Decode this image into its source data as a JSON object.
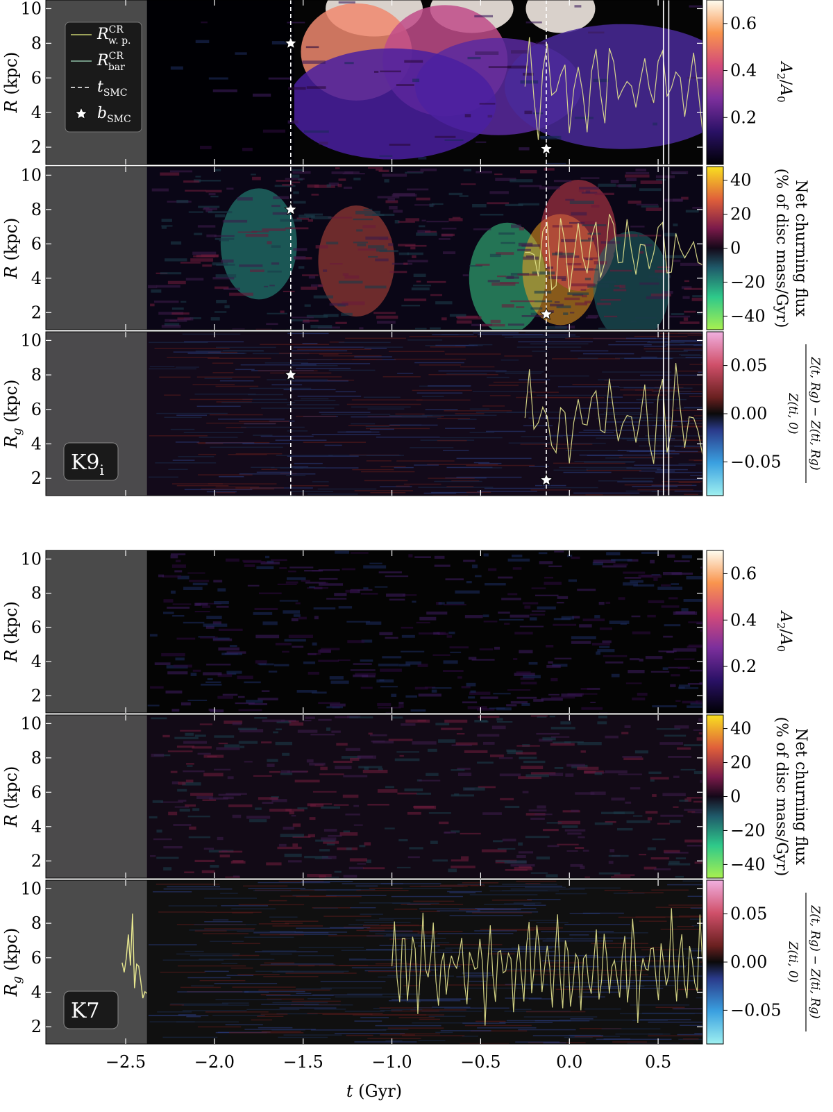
{
  "chart_data": {
    "type": "heatmap",
    "xlabel": "t (Gyr)",
    "x_ticks": [
      -2.5,
      -2.0,
      -1.5,
      -1.0,
      -0.5,
      0.0,
      0.5
    ],
    "x_tick_labels": [
      "−2.5",
      "−2.0",
      "−1.5",
      "−1.0",
      "−0.5",
      "0.0",
      "0.5"
    ],
    "xlim": [
      -2.95,
      0.75
    ],
    "ylim": [
      1.0,
      10.5
    ],
    "y_ticks": [
      2,
      4,
      6,
      8,
      10
    ],
    "masked_until_t": -2.38,
    "groups": [
      {
        "simulation": "K9",
        "simulation_subscript": "i",
        "t_smc": [
          -1.57,
          -0.13
        ],
        "b_smc": [
          {
            "t": -1.57,
            "R": 8.0
          },
          {
            "t": -0.13,
            "R": 1.9
          }
        ],
        "white_vertical_lines": [
          0.53,
          0.56
        ],
        "legend": [
          {
            "symbol": "R",
            "sup": "CR",
            "sub": "w. p."
          },
          {
            "symbol": "R",
            "sup": "CR",
            "sub": "bar"
          },
          {
            "symbol": "t",
            "sub": "SMC"
          },
          {
            "symbol": "b",
            "sub": "SMC"
          }
        ],
        "panels": [
          {
            "ylabel": "R (kpc)",
            "quantity": "A2/A0",
            "colorbar_label": "A₂/A₀",
            "colorbar_ticks": [
              0.2,
              0.4,
              0.6
            ],
            "clim": [
              0.0,
              0.7
            ]
          },
          {
            "ylabel": "R (kpc)",
            "quantity": "net churning flux",
            "colorbar_label_lines": [
              "Net churning flux",
              "(% of disc mass/Gyr)"
            ],
            "colorbar_ticks": [
              -40,
              -20,
              0,
              20,
              40
            ],
            "clim": [
              -48,
              48
            ]
          },
          {
            "ylabel": "Rg (kpc)",
            "quantity": "metallicity deviation",
            "colorbar_label_num": "Z(t, Rg) − Z(ti, Rg)",
            "colorbar_label_den": "Z(ti, 0)",
            "colorbar_ticks": [
              -0.05,
              0.0,
              0.05
            ],
            "colorbar_tick_labels": [
              "−0.05",
              "0.00",
              "0.05"
            ],
            "clim": [
              -0.085,
              0.085
            ]
          }
        ]
      },
      {
        "simulation": "K7",
        "simulation_subscript": "",
        "t_smc": [],
        "b_smc": [],
        "white_vertical_lines": [],
        "legend": [],
        "panels": [
          {
            "ylabel": "R (kpc)",
            "quantity": "A2/A0",
            "colorbar_label": "A₂/A₀",
            "colorbar_ticks": [
              0.2,
              0.4,
              0.6
            ],
            "clim": [
              0.0,
              0.7
            ]
          },
          {
            "ylabel": "R (kpc)",
            "quantity": "net churning flux",
            "colorbar_label_lines": [
              "Net churning flux",
              "(% of disc mass/Gyr)"
            ],
            "colorbar_ticks": [
              -40,
              -20,
              0,
              20,
              40
            ],
            "clim": [
              -48,
              48
            ]
          },
          {
            "ylabel": "Rg (kpc)",
            "quantity": "metallicity deviation",
            "colorbar_label_num": "Z(t, Rg) − Z(ti, Rg)",
            "colorbar_label_den": "Z(ti, 0)",
            "colorbar_ticks": [
              -0.05,
              0.0,
              0.05
            ],
            "colorbar_tick_labels": [
              "−0.05",
              "0.00",
              "0.05"
            ],
            "clim": [
              -0.085,
              0.085
            ]
          }
        ]
      }
    ]
  },
  "colors": {
    "mask": "#505050",
    "cr_line": "#e8e890",
    "legend_bg": "#1a1a1a"
  }
}
